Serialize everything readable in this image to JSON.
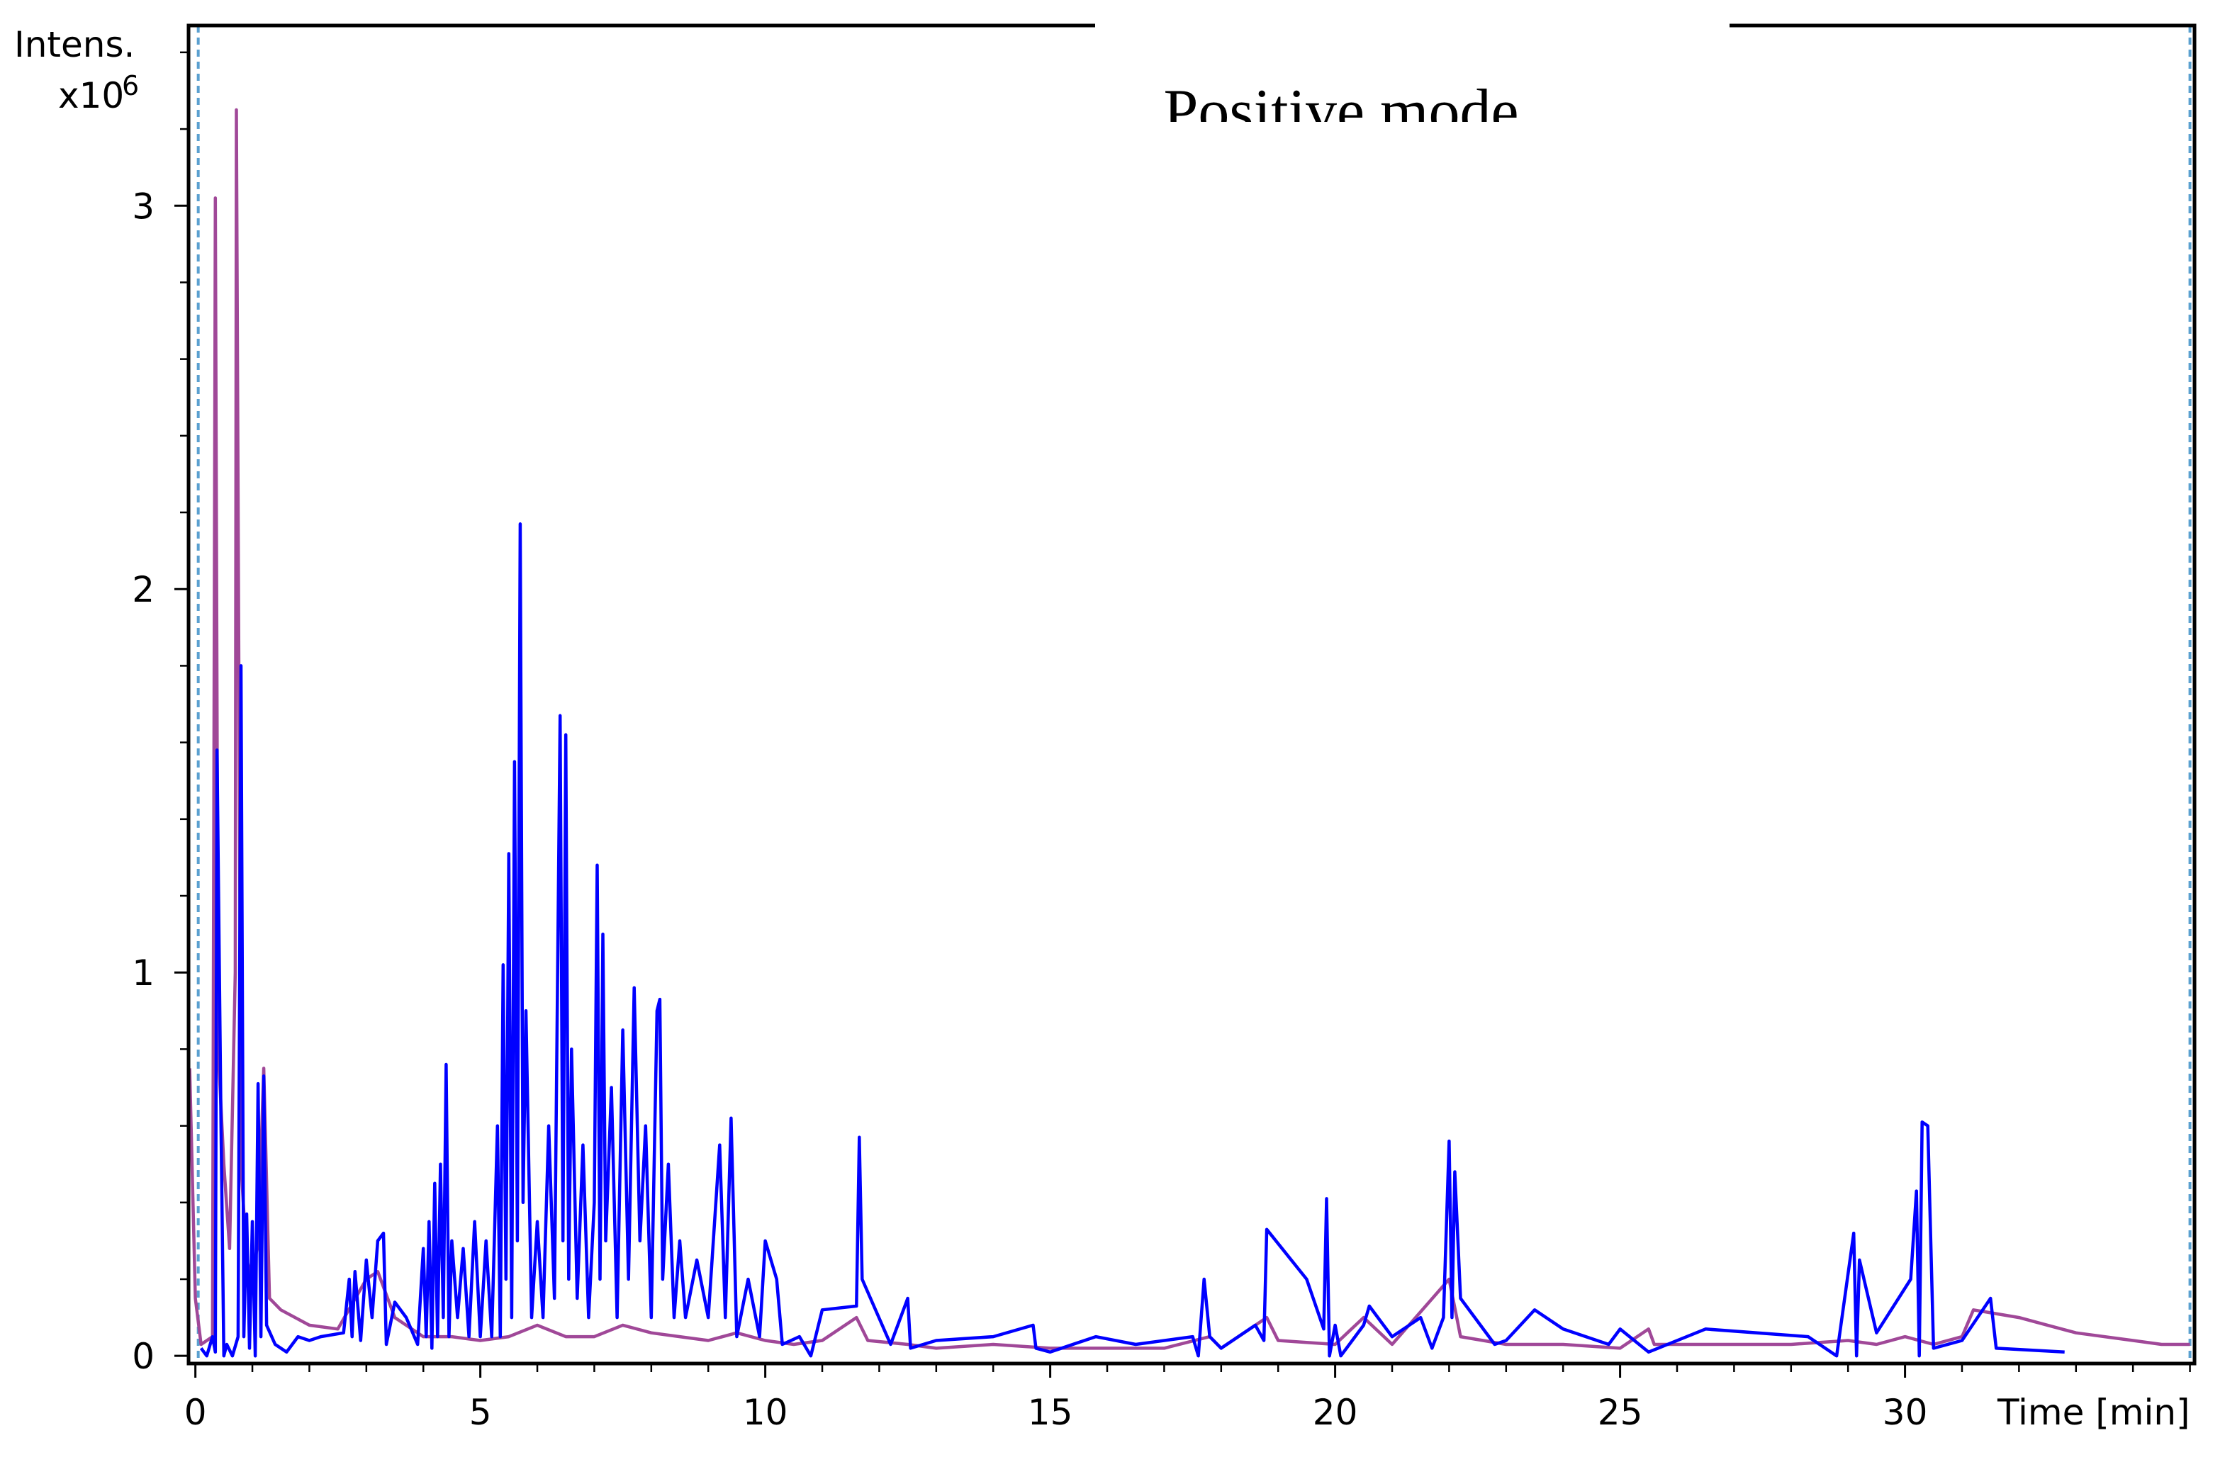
{
  "chart_data": {
    "type": "line",
    "title": "Positive mode",
    "y_label": "Intens.",
    "y_multiplier": "x10",
    "y_multiplier_exp": "6",
    "x_label": "Time [min]",
    "xlim": [
      -0.12,
      35.08
    ],
    "ylim": [
      -0.02,
      3.47
    ],
    "xticks": [
      0,
      5,
      10,
      15,
      20,
      25,
      30
    ],
    "yticks": [
      0,
      1,
      2,
      3
    ],
    "xminor": [
      1,
      2,
      3,
      4,
      6,
      7,
      8,
      9,
      11,
      12,
      13,
      14,
      16,
      17,
      18,
      19,
      21,
      22,
      23,
      24,
      26,
      27,
      28,
      29,
      31,
      32,
      33,
      34,
      35
    ],
    "yminor": [
      0.2,
      0.4,
      0.6,
      0.8,
      1.2,
      1.4,
      1.6,
      1.8,
      2.2,
      2.4,
      2.6,
      2.8,
      3.2,
      3.4
    ],
    "markers": [
      0.05,
      35.0
    ],
    "marker_color": "#5aa0d0",
    "series": [
      {
        "color": "#a04898",
        "x": [
          -0.1,
          0.0,
          0.1,
          0.3,
          0.35,
          0.4,
          0.5,
          0.6,
          0.7,
          0.72,
          0.8,
          0.9,
          1.0,
          1.1,
          1.2,
          1.3,
          1.5,
          2.0,
          2.5,
          3.0,
          3.2,
          3.5,
          4.0,
          4.5,
          5.0,
          5.5,
          6.0,
          6.5,
          7.0,
          7.5,
          8.0,
          8.5,
          9.0,
          9.5,
          10.0,
          10.5,
          11.0,
          11.6,
          11.8,
          12.5,
          13.0,
          14.0,
          15.0,
          16.0,
          17.0,
          17.8,
          18.0,
          18.8,
          19.0,
          20.0,
          20.5,
          21.0,
          22.0,
          22.2,
          23.0,
          24.0,
          25.0,
          25.5,
          25.6,
          27.0,
          28.0,
          29.0,
          29.5,
          30.0,
          30.5,
          31.0,
          31.2,
          32.0,
          32.5,
          33.0,
          34.0,
          34.5,
          35.0
        ],
        "values": [
          0.75,
          0.15,
          0.03,
          0.05,
          3.02,
          0.8,
          0.5,
          0.28,
          1.0,
          3.25,
          0.5,
          0.25,
          0.2,
          0.3,
          0.75,
          0.15,
          0.12,
          0.08,
          0.07,
          0.2,
          0.22,
          0.1,
          0.05,
          0.05,
          0.04,
          0.05,
          0.08,
          0.05,
          0.05,
          0.08,
          0.06,
          0.05,
          0.04,
          0.06,
          0.04,
          0.03,
          0.04,
          0.1,
          0.04,
          0.03,
          0.02,
          0.03,
          0.02,
          0.02,
          0.02,
          0.05,
          0.02,
          0.1,
          0.04,
          0.03,
          0.1,
          0.03,
          0.2,
          0.05,
          0.03,
          0.03,
          0.02,
          0.07,
          0.03,
          0.03,
          0.03,
          0.04,
          0.03,
          0.05,
          0.03,
          0.05,
          0.12,
          0.1,
          0.08,
          0.06,
          0.04,
          0.03,
          0.03
        ]
      },
      {
        "color": "#0000ff",
        "x": [
          0.1,
          0.2,
          0.3,
          0.35,
          0.38,
          0.45,
          0.5,
          0.55,
          0.65,
          0.75,
          0.8,
          0.85,
          0.9,
          0.95,
          1.0,
          1.05,
          1.1,
          1.15,
          1.2,
          1.25,
          1.4,
          1.6,
          1.8,
          2.0,
          2.2,
          2.6,
          2.7,
          2.75,
          2.8,
          2.9,
          3.0,
          3.1,
          3.2,
          3.3,
          3.35,
          3.5,
          3.7,
          3.9,
          4.0,
          4.05,
          4.1,
          4.15,
          4.2,
          4.25,
          4.3,
          4.35,
          4.4,
          4.45,
          4.5,
          4.6,
          4.7,
          4.8,
          4.9,
          5.0,
          5.1,
          5.2,
          5.3,
          5.35,
          5.4,
          5.45,
          5.5,
          5.55,
          5.6,
          5.65,
          5.7,
          5.75,
          5.8,
          5.9,
          6.0,
          6.1,
          6.2,
          6.3,
          6.4,
          6.45,
          6.5,
          6.55,
          6.6,
          6.7,
          6.8,
          6.9,
          7.0,
          7.05,
          7.1,
          7.15,
          7.2,
          7.3,
          7.4,
          7.5,
          7.6,
          7.7,
          7.8,
          7.9,
          8.0,
          8.1,
          8.15,
          8.2,
          8.3,
          8.4,
          8.5,
          8.6,
          8.8,
          9.0,
          9.2,
          9.3,
          9.4,
          9.5,
          9.7,
          9.9,
          10.0,
          10.2,
          10.3,
          10.6,
          10.8,
          11.0,
          11.6,
          11.65,
          11.7,
          12.2,
          12.5,
          12.55,
          13.0,
          14.0,
          14.7,
          14.75,
          15.0,
          15.8,
          16.5,
          17.5,
          17.6,
          17.7,
          17.8,
          18.0,
          18.6,
          18.75,
          18.8,
          19.5,
          19.8,
          19.85,
          19.9,
          20.0,
          20.1,
          20.5,
          20.6,
          21.0,
          21.5,
          21.7,
          21.9,
          22.0,
          22.05,
          22.1,
          22.2,
          22.8,
          23.0,
          23.5,
          24.0,
          24.8,
          25.0,
          25.5,
          26.5,
          28.3,
          28.8,
          29.1,
          29.15,
          29.2,
          29.5,
          30.1,
          30.2,
          30.25,
          30.3,
          30.4,
          30.5,
          31.0,
          31.5,
          31.6,
          32.8
        ],
        "values": [
          0.02,
          0.0,
          0.05,
          0.01,
          1.58,
          0.6,
          0.0,
          0.03,
          0.0,
          0.05,
          1.8,
          0.05,
          0.37,
          0.02,
          0.35,
          0.0,
          0.71,
          0.05,
          0.73,
          0.08,
          0.03,
          0.01,
          0.05,
          0.04,
          0.05,
          0.06,
          0.2,
          0.05,
          0.22,
          0.04,
          0.25,
          0.1,
          0.3,
          0.32,
          0.03,
          0.14,
          0.1,
          0.03,
          0.28,
          0.05,
          0.35,
          0.02,
          0.45,
          0.05,
          0.5,
          0.1,
          0.76,
          0.05,
          0.3,
          0.1,
          0.28,
          0.05,
          0.35,
          0.05,
          0.3,
          0.05,
          0.6,
          0.05,
          1.02,
          0.2,
          1.31,
          0.1,
          1.55,
          0.3,
          2.17,
          0.4,
          0.9,
          0.1,
          0.35,
          0.1,
          0.6,
          0.15,
          1.67,
          0.3,
          1.62,
          0.2,
          0.8,
          0.15,
          0.55,
          0.1,
          0.4,
          1.28,
          0.2,
          1.1,
          0.3,
          0.7,
          0.1,
          0.85,
          0.2,
          0.96,
          0.3,
          0.6,
          0.1,
          0.9,
          0.93,
          0.2,
          0.5,
          0.1,
          0.3,
          0.1,
          0.25,
          0.1,
          0.55,
          0.1,
          0.62,
          0.05,
          0.2,
          0.05,
          0.3,
          0.2,
          0.03,
          0.05,
          0.0,
          0.12,
          0.13,
          0.57,
          0.2,
          0.03,
          0.15,
          0.02,
          0.04,
          0.05,
          0.08,
          0.02,
          0.01,
          0.05,
          0.03,
          0.05,
          0.0,
          0.2,
          0.05,
          0.02,
          0.08,
          0.04,
          0.33,
          0.2,
          0.07,
          0.41,
          0.0,
          0.08,
          0.0,
          0.08,
          0.13,
          0.05,
          0.1,
          0.02,
          0.1,
          0.56,
          0.1,
          0.48,
          0.15,
          0.03,
          0.04,
          0.12,
          0.07,
          0.03,
          0.07,
          0.01,
          0.07,
          0.05,
          0.0,
          0.32,
          0.0,
          0.25,
          0.06,
          0.2,
          0.43,
          0.0,
          0.61,
          0.6,
          0.02,
          0.04,
          0.15,
          0.02,
          0.01
        ]
      }
    ]
  }
}
